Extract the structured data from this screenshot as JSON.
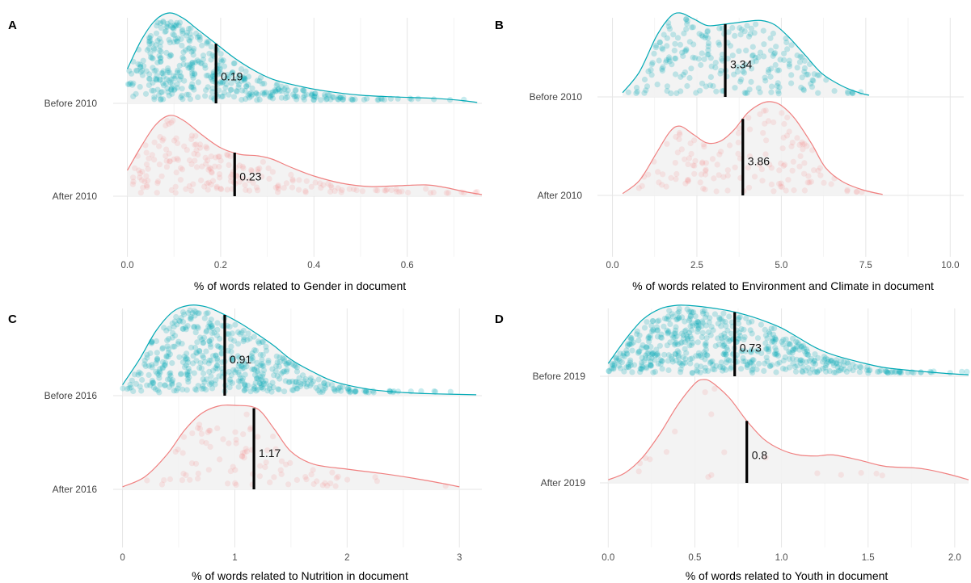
{
  "chart_data": [
    {
      "type": "density",
      "panel": "A",
      "xlabel": "% of words related to Gender in document",
      "xlim": [
        -0.02,
        0.76
      ],
      "xticks": [
        0.0,
        0.2,
        0.4,
        0.6
      ],
      "tick_labels": [
        "0.0",
        "0.2",
        "0.4",
        "0.6"
      ],
      "series": [
        {
          "label": "Before 2010",
          "color": "#00a9b5",
          "mean": 0.19,
          "mean_label": "0.19",
          "points": 420,
          "density": [
            [
              0.0,
              0.38
            ],
            [
              0.03,
              0.7
            ],
            [
              0.06,
              0.92
            ],
            [
              0.09,
              1.0
            ],
            [
              0.12,
              0.94
            ],
            [
              0.15,
              0.82
            ],
            [
              0.19,
              0.66
            ],
            [
              0.23,
              0.5
            ],
            [
              0.27,
              0.37
            ],
            [
              0.31,
              0.27
            ],
            [
              0.36,
              0.2
            ],
            [
              0.42,
              0.14
            ],
            [
              0.5,
              0.09
            ],
            [
              0.58,
              0.07
            ],
            [
              0.66,
              0.055
            ],
            [
              0.72,
              0.03
            ],
            [
              0.75,
              0.01
            ]
          ]
        },
        {
          "label": "After 2010",
          "color": "#f08080",
          "mean": 0.23,
          "mean_label": "0.23",
          "points": 200,
          "density": [
            [
              0.0,
              0.32
            ],
            [
              0.03,
              0.62
            ],
            [
              0.06,
              0.88
            ],
            [
              0.09,
              1.0
            ],
            [
              0.12,
              0.94
            ],
            [
              0.16,
              0.76
            ],
            [
              0.2,
              0.6
            ],
            [
              0.24,
              0.52
            ],
            [
              0.28,
              0.5
            ],
            [
              0.31,
              0.46
            ],
            [
              0.35,
              0.36
            ],
            [
              0.4,
              0.25
            ],
            [
              0.46,
              0.16
            ],
            [
              0.52,
              0.12
            ],
            [
              0.58,
              0.13
            ],
            [
              0.64,
              0.14
            ],
            [
              0.68,
              0.11
            ],
            [
              0.72,
              0.06
            ],
            [
              0.76,
              0.02
            ]
          ]
        }
      ]
    },
    {
      "type": "density",
      "panel": "B",
      "xlabel": "% of words related to Environment and Climate in document",
      "xlim": [
        -0.3,
        10.4
      ],
      "xticks": [
        0.0,
        2.5,
        5.0,
        7.5,
        10.0
      ],
      "tick_labels": [
        "0.0",
        "2.5",
        "5.0",
        "7.5",
        "10.0"
      ],
      "series": [
        {
          "label": "Before 2010",
          "color": "#00a9b5",
          "mean": 3.34,
          "mean_label": "3.34",
          "points": 230,
          "density": [
            [
              0.3,
              0.05
            ],
            [
              0.8,
              0.3
            ],
            [
              1.3,
              0.72
            ],
            [
              1.7,
              0.95
            ],
            [
              2.0,
              1.0
            ],
            [
              2.4,
              0.93
            ],
            [
              2.8,
              0.85
            ],
            [
              3.2,
              0.86
            ],
            [
              3.6,
              0.88
            ],
            [
              4.0,
              0.9
            ],
            [
              4.4,
              0.91
            ],
            [
              4.8,
              0.86
            ],
            [
              5.2,
              0.72
            ],
            [
              5.7,
              0.5
            ],
            [
              6.2,
              0.28
            ],
            [
              6.8,
              0.13
            ],
            [
              7.3,
              0.05
            ],
            [
              7.6,
              0.02
            ]
          ]
        },
        {
          "label": "After 2010",
          "color": "#f08080",
          "mean": 3.86,
          "mean_label": "3.86",
          "points": 140,
          "density": [
            [
              0.3,
              0.02
            ],
            [
              0.8,
              0.16
            ],
            [
              1.3,
              0.45
            ],
            [
              1.7,
              0.68
            ],
            [
              2.0,
              0.74
            ],
            [
              2.4,
              0.65
            ],
            [
              2.8,
              0.56
            ],
            [
              3.2,
              0.58
            ],
            [
              3.6,
              0.7
            ],
            [
              4.0,
              0.88
            ],
            [
              4.4,
              0.98
            ],
            [
              4.7,
              1.0
            ],
            [
              5.0,
              0.96
            ],
            [
              5.4,
              0.82
            ],
            [
              5.9,
              0.55
            ],
            [
              6.3,
              0.3
            ],
            [
              6.8,
              0.15
            ],
            [
              7.4,
              0.06
            ],
            [
              8.0,
              0.01
            ]
          ]
        }
      ]
    },
    {
      "type": "density",
      "panel": "C",
      "xlabel": "% of words related to Nutrition in document",
      "xlim": [
        -0.04,
        3.2
      ],
      "xticks": [
        0,
        1,
        2,
        3
      ],
      "tick_labels": [
        "0",
        "1",
        "2",
        "3"
      ],
      "series": [
        {
          "label": "Before 2016",
          "color": "#00a9b5",
          "mean": 0.91,
          "mean_label": "0.91",
          "points": 480,
          "density": [
            [
              0.0,
              0.12
            ],
            [
              0.15,
              0.4
            ],
            [
              0.3,
              0.72
            ],
            [
              0.45,
              0.93
            ],
            [
              0.6,
              1.0
            ],
            [
              0.75,
              0.98
            ],
            [
              0.9,
              0.9
            ],
            [
              1.05,
              0.8
            ],
            [
              1.2,
              0.68
            ],
            [
              1.35,
              0.55
            ],
            [
              1.5,
              0.4
            ],
            [
              1.7,
              0.26
            ],
            [
              1.9,
              0.15
            ],
            [
              2.2,
              0.07
            ],
            [
              2.5,
              0.035
            ],
            [
              2.8,
              0.02
            ],
            [
              3.15,
              0.01
            ]
          ]
        },
        {
          "label": "After 2016",
          "color": "#f08080",
          "mean": 1.17,
          "mean_label": "1.17",
          "points": 90,
          "density": [
            [
              0.0,
              0.03
            ],
            [
              0.2,
              0.15
            ],
            [
              0.4,
              0.42
            ],
            [
              0.55,
              0.7
            ],
            [
              0.7,
              0.9
            ],
            [
              0.85,
              0.99
            ],
            [
              1.0,
              1.0
            ],
            [
              1.2,
              0.96
            ],
            [
              1.35,
              0.72
            ],
            [
              1.5,
              0.45
            ],
            [
              1.7,
              0.3
            ],
            [
              2.0,
              0.24
            ],
            [
              2.3,
              0.19
            ],
            [
              2.6,
              0.13
            ],
            [
              2.85,
              0.07
            ],
            [
              3.0,
              0.03
            ]
          ]
        }
      ]
    },
    {
      "type": "density",
      "panel": "D",
      "xlabel": "% of words related to Youth in document",
      "xlim": [
        -0.02,
        2.08
      ],
      "xticks": [
        0.0,
        0.5,
        1.0,
        1.5,
        2.0
      ],
      "tick_labels": [
        "0.0",
        "0.5",
        "1.0",
        "1.5",
        "2.0"
      ],
      "series": [
        {
          "label": "Before 2019",
          "color": "#00a9b5",
          "mean": 0.73,
          "mean_label": "0.73",
          "points": 560,
          "density": [
            [
              0.0,
              0.18
            ],
            [
              0.1,
              0.52
            ],
            [
              0.2,
              0.8
            ],
            [
              0.3,
              0.95
            ],
            [
              0.4,
              1.0
            ],
            [
              0.5,
              0.99
            ],
            [
              0.6,
              0.96
            ],
            [
              0.7,
              0.92
            ],
            [
              0.8,
              0.86
            ],
            [
              0.9,
              0.78
            ],
            [
              1.0,
              0.68
            ],
            [
              1.1,
              0.54
            ],
            [
              1.2,
              0.4
            ],
            [
              1.3,
              0.3
            ],
            [
              1.45,
              0.2
            ],
            [
              1.6,
              0.12
            ],
            [
              1.8,
              0.07
            ],
            [
              1.95,
              0.04
            ],
            [
              2.08,
              0.02
            ]
          ]
        },
        {
          "label": "After 2019",
          "color": "#f08080",
          "mean": 0.8,
          "mean_label": "0.8",
          "points": 18,
          "density": [
            [
              0.0,
              0.03
            ],
            [
              0.1,
              0.1
            ],
            [
              0.2,
              0.25
            ],
            [
              0.3,
              0.48
            ],
            [
              0.4,
              0.75
            ],
            [
              0.5,
              0.96
            ],
            [
              0.55,
              1.0
            ],
            [
              0.6,
              0.97
            ],
            [
              0.7,
              0.82
            ],
            [
              0.8,
              0.6
            ],
            [
              0.9,
              0.42
            ],
            [
              1.0,
              0.32
            ],
            [
              1.1,
              0.27
            ],
            [
              1.2,
              0.26
            ],
            [
              1.3,
              0.27
            ],
            [
              1.45,
              0.22
            ],
            [
              1.6,
              0.16
            ],
            [
              1.8,
              0.14
            ],
            [
              1.95,
              0.09
            ],
            [
              2.08,
              0.03
            ]
          ]
        }
      ]
    }
  ]
}
